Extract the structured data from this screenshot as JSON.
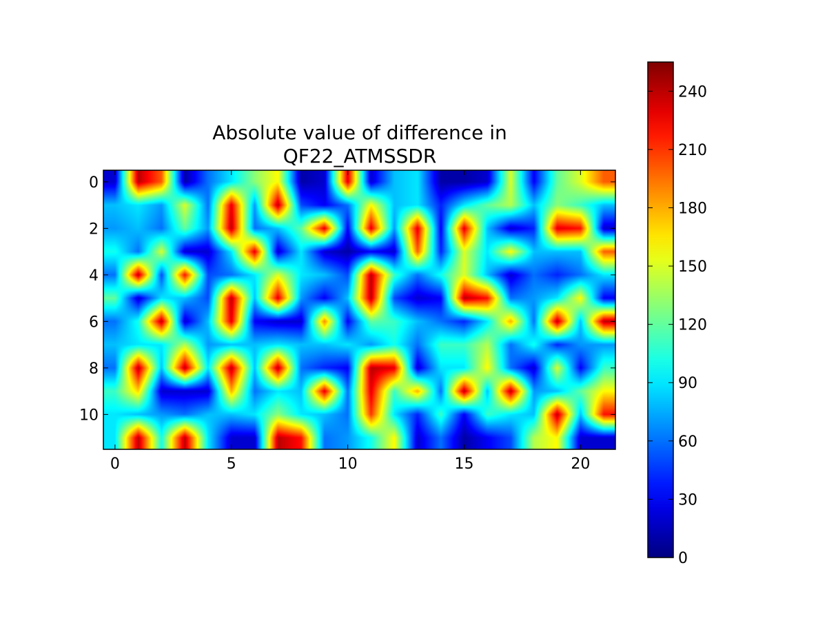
{
  "chart_data": {
    "type": "heatmap",
    "title": "Absolute value of difference in\nQF22_ATMSSDR",
    "title_lines": [
      "Absolute value of difference in",
      "QF22_ATMSSDR"
    ],
    "xlabel": "",
    "ylabel": "",
    "xlim": [
      -0.5,
      21.5
    ],
    "ylim": [
      11.5,
      -0.5
    ],
    "xticks": [
      0,
      5,
      10,
      15,
      20
    ],
    "yticks": [
      0,
      2,
      4,
      6,
      8,
      10
    ],
    "colormap": "jet",
    "interpolation": "bilinear",
    "colorbar": {
      "min": 0,
      "max": 255,
      "ticks": [
        0,
        30,
        60,
        90,
        120,
        150,
        180,
        210,
        240
      ]
    },
    "rows": 12,
    "cols": 22,
    "values": [
      [
        20,
        240,
        200,
        10,
        60,
        90,
        130,
        160,
        10,
        20,
        230,
        20,
        80,
        90,
        10,
        10,
        20,
        150,
        30,
        120,
        150,
        200
      ],
      [
        80,
        90,
        70,
        150,
        60,
        230,
        70,
        240,
        50,
        30,
        60,
        160,
        80,
        90,
        40,
        90,
        120,
        140,
        80,
        130,
        110,
        80
      ],
      [
        70,
        80,
        60,
        120,
        70,
        240,
        60,
        80,
        120,
        230,
        30,
        230,
        70,
        230,
        30,
        230,
        80,
        20,
        40,
        230,
        220,
        20
      ],
      [
        100,
        60,
        150,
        20,
        20,
        90,
        230,
        20,
        90,
        20,
        10,
        30,
        20,
        200,
        40,
        150,
        90,
        160,
        80,
        80,
        80,
        200
      ],
      [
        60,
        240,
        50,
        220,
        50,
        60,
        90,
        150,
        90,
        80,
        50,
        240,
        110,
        60,
        100,
        150,
        80,
        20,
        60,
        40,
        60,
        90
      ],
      [
        120,
        20,
        90,
        80,
        50,
        240,
        80,
        230,
        70,
        30,
        80,
        240,
        50,
        20,
        30,
        240,
        220,
        60,
        70,
        90,
        160,
        30
      ],
      [
        60,
        100,
        240,
        20,
        80,
        230,
        30,
        20,
        20,
        190,
        30,
        120,
        110,
        80,
        60,
        40,
        90,
        180,
        60,
        240,
        80,
        240
      ],
      [
        80,
        90,
        90,
        140,
        70,
        80,
        80,
        90,
        80,
        80,
        90,
        70,
        100,
        60,
        110,
        110,
        140,
        60,
        100,
        40,
        70,
        70
      ],
      [
        60,
        240,
        80,
        240,
        90,
        240,
        80,
        240,
        60,
        40,
        30,
        240,
        230,
        20,
        90,
        90,
        160,
        60,
        20,
        150,
        30,
        110
      ],
      [
        110,
        170,
        20,
        20,
        20,
        180,
        60,
        90,
        80,
        230,
        60,
        230,
        110,
        180,
        60,
        240,
        80,
        240,
        70,
        80,
        120,
        160
      ],
      [
        90,
        80,
        70,
        60,
        80,
        80,
        90,
        130,
        90,
        80,
        60,
        210,
        90,
        40,
        110,
        30,
        110,
        90,
        80,
        240,
        80,
        220
      ],
      [
        90,
        240,
        100,
        240,
        90,
        20,
        20,
        240,
        220,
        60,
        70,
        100,
        160,
        20,
        60,
        10,
        30,
        50,
        140,
        160,
        20,
        20
      ]
    ]
  }
}
